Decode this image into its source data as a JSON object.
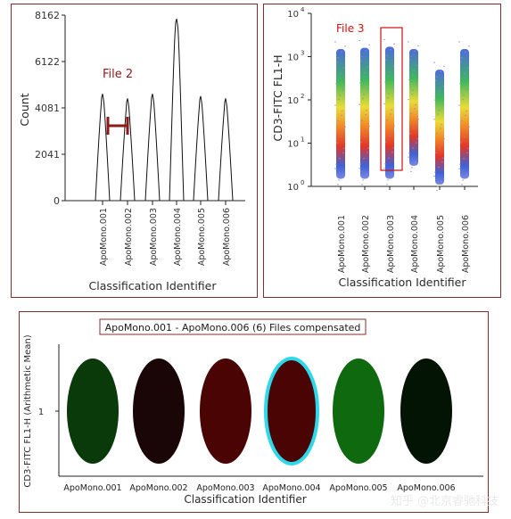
{
  "chart_data": [
    {
      "type": "line",
      "title": "",
      "xlabel": "Classification Identifier",
      "ylabel": "Count",
      "ylim": [
        0,
        8162
      ],
      "yticks": [
        "0",
        "2041",
        "4081",
        "6122",
        "8162"
      ],
      "categories": [
        "ApoMono.001",
        "ApoMono.002",
        "ApoMono.003",
        "ApoMono.004",
        "ApoMono.005",
        "ApoMono.006"
      ],
      "series": [
        {
          "values": [
            4700,
            4500,
            4700,
            8000,
            4600,
            4500
          ]
        }
      ],
      "annotation": {
        "text": "File 2",
        "color": "#8b1a1a"
      }
    },
    {
      "type": "scatter",
      "title": "",
      "xlabel": "Classification Identifier",
      "ylabel": "CD3-FITC FL1-H",
      "scale": "log",
      "ylim": [
        1,
        10000
      ],
      "yticks": [
        "10^0",
        "10^1",
        "10^2",
        "10^3",
        "10^4"
      ],
      "categories": [
        "ApoMono.001",
        "ApoMono.002",
        "ApoMono.003",
        "ApoMono.004",
        "ApoMono.005",
        "ApoMono.006"
      ],
      "annotation": {
        "text": "File 3",
        "color": "#cc1111",
        "highlight_category": "ApoMono.003"
      }
    },
    {
      "type": "heatmap",
      "title": "ApoMono.001 - ApoMono.006 (6) Files compensated",
      "xlabel": "Classification Identifier",
      "ylabel": "CD3-FITC FL1-H (Arithmetic Mean)",
      "yticks": [
        "1"
      ],
      "categories": [
        "ApoMono.001",
        "ApoMono.002",
        "ApoMono.003",
        "ApoMono.004",
        "ApoMono.005",
        "ApoMono.006"
      ],
      "colors": [
        "#0a3a0a",
        "#1a0606",
        "#4a0404",
        "#4a0404",
        "#0f6a0f",
        "#041404"
      ],
      "highlight_index": 3,
      "highlight_color": "#2ed8e8"
    }
  ],
  "watermark": "知乎 @北京睿驰科技"
}
